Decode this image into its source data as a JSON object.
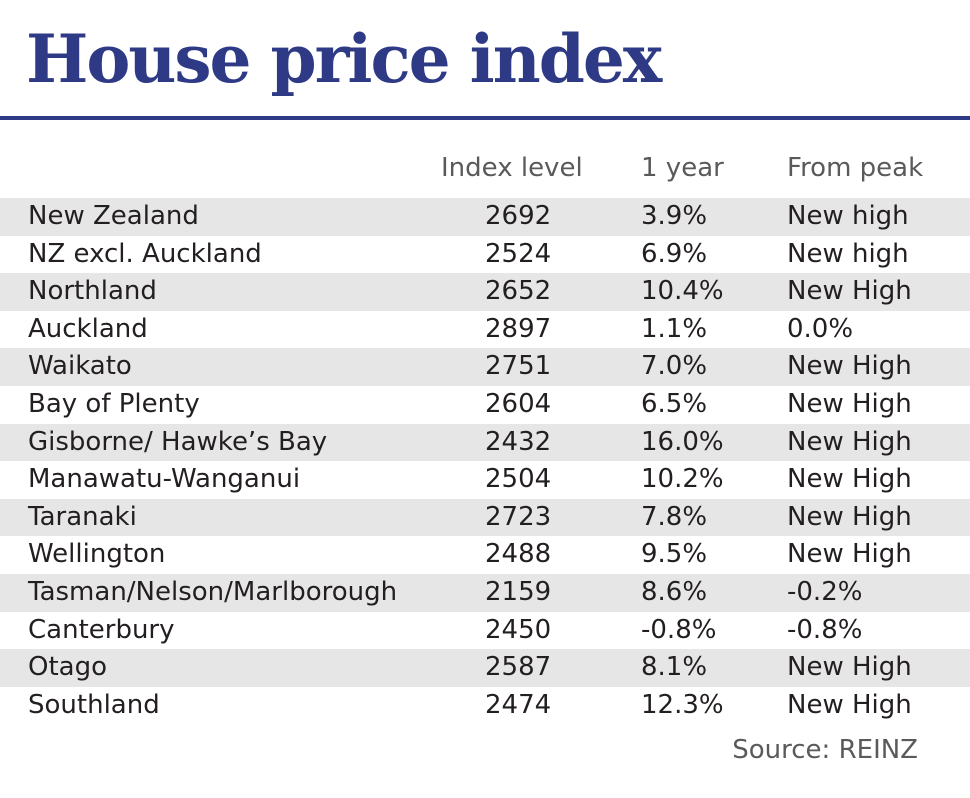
{
  "chart_data": {
    "type": "table",
    "title": "House price index",
    "columns": [
      "Index level",
      "1 year",
      "From peak"
    ],
    "rows": [
      {
        "region": "New Zealand",
        "index": "2692",
        "year": "3.9%",
        "peak": "New high"
      },
      {
        "region": "NZ excl. Auckland",
        "index": "2524",
        "year": "6.9%",
        "peak": "New high"
      },
      {
        "region": "Northland",
        "index": "2652",
        "year": "10.4%",
        "peak": "New High"
      },
      {
        "region": "Auckland",
        "index": "2897",
        "year": "1.1%",
        "peak": "0.0%"
      },
      {
        "region": "Waikato",
        "index": "2751",
        "year": "7.0%",
        "peak": "New High"
      },
      {
        "region": "Bay of Plenty",
        "index": "2604",
        "year": "6.5%",
        "peak": "New High"
      },
      {
        "region": "Gisborne/ Hawke’s Bay",
        "index": "2432",
        "year": "16.0%",
        "peak": "New High"
      },
      {
        "region": "Manawatu-Wanganui",
        "index": "2504",
        "year": "10.2%",
        "peak": "New High"
      },
      {
        "region": "Taranaki",
        "index": "2723",
        "year": "7.8%",
        "peak": "New High"
      },
      {
        "region": "Wellington",
        "index": "2488",
        "year": "9.5%",
        "peak": "New High"
      },
      {
        "region": "Tasman/Nelson/Marlborough",
        "index": "2159",
        "year": "8.6%",
        "peak": "-0.2%"
      },
      {
        "region": "Canterbury",
        "index": "2450",
        "year": "-0.8%",
        "peak": "-0.8%"
      },
      {
        "region": "Otago",
        "index": "2587",
        "year": "8.1%",
        "peak": "New High"
      },
      {
        "region": "Southland",
        "index": "2474",
        "year": "12.3%",
        "peak": "New High"
      }
    ],
    "source": "Source: REINZ"
  },
  "colors": {
    "title": "#2f3a86",
    "rule": "#2f3a86",
    "row_shade": "#e6e6e6",
    "header_text": "#5a5a5c",
    "body_text": "#231f20"
  }
}
